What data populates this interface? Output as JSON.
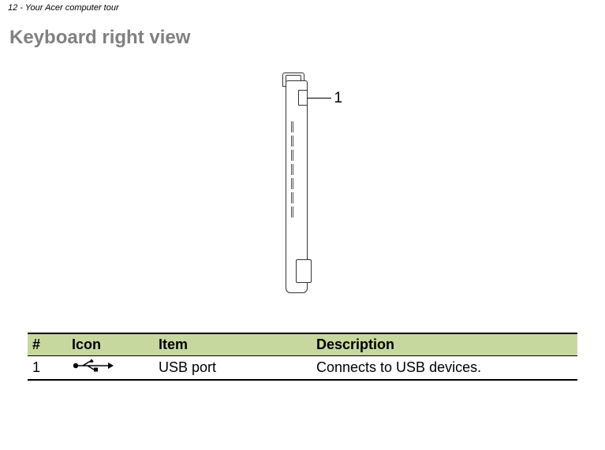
{
  "header": {
    "text": "12 - Your Acer computer tour"
  },
  "heading": {
    "text": "Keyboard right view"
  },
  "figure": {
    "callout_label": "1",
    "vents": [
      62,
      80,
      98,
      116,
      134,
      152,
      170
    ]
  },
  "table": {
    "columns": {
      "num": "#",
      "icon": "Icon",
      "item": "Item",
      "desc": "Description"
    },
    "rows": [
      {
        "num": "1",
        "icon_name": "usb-icon",
        "item": "USB port",
        "desc": "Connects to USB devices."
      }
    ]
  },
  "colors": {
    "heading": "#808080",
    "th_bg": "#c6d89e",
    "border": "#000000",
    "body_bg": "#ffffff"
  },
  "typography": {
    "header_fontsize": 11,
    "heading_fontsize": 24,
    "table_fontsize": 18,
    "callout_fontsize": 19
  }
}
